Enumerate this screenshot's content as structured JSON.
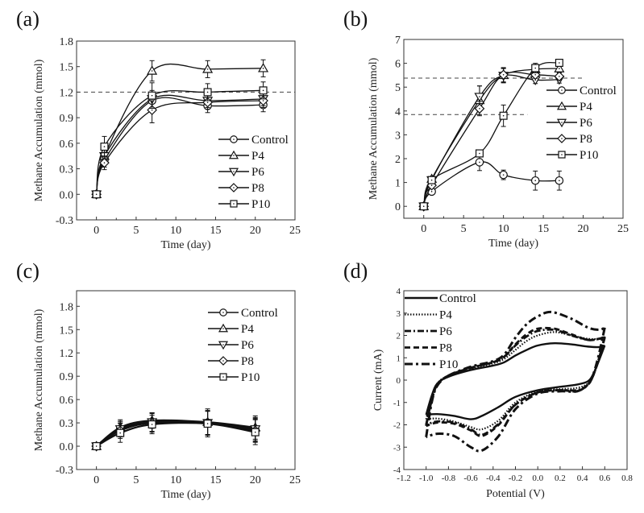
{
  "chart_data": [
    {
      "id": "a",
      "panel_label": "(a)",
      "type": "line",
      "xlabel": "Time (day)",
      "ylabel": "Methane Accumulation (mmol)",
      "xlim": [
        -2.5,
        25
      ],
      "ylim": [
        -0.3,
        1.8
      ],
      "xticks": [
        0,
        5,
        10,
        15,
        20,
        25
      ],
      "yticks": [
        -0.3,
        0.0,
        0.3,
        0.6,
        0.9,
        1.2,
        1.5,
        1.8
      ],
      "ytick_labels": [
        "-0.3",
        "0.0",
        "0.3",
        "0.6",
        "0.9",
        "1.2",
        "1.5",
        "1.8"
      ],
      "grid": false,
      "legend_position": "lower-right",
      "reference_lines": [
        {
          "axis": "y",
          "value": 1.2,
          "style": "dashed"
        }
      ],
      "x": [
        0,
        1,
        7,
        14,
        21
      ],
      "series": [
        {
          "name": "Control",
          "marker": "circle",
          "values": [
            0,
            0.4,
            1.1,
            1.04,
            1.05
          ],
          "errors": [
            0.03,
            0.08,
            0.1,
            0.08,
            0.08
          ]
        },
        {
          "name": "P4",
          "marker": "triangle-up",
          "values": [
            0,
            0.45,
            1.45,
            1.47,
            1.48
          ],
          "errors": [
            0.03,
            0.08,
            0.12,
            0.1,
            0.1
          ]
        },
        {
          "name": "P6",
          "marker": "triangle-down",
          "values": [
            0,
            0.45,
            1.12,
            1.1,
            1.12
          ],
          "errors": [
            0.03,
            0.08,
            0.1,
            0.08,
            0.08
          ]
        },
        {
          "name": "P8",
          "marker": "diamond",
          "values": [
            0,
            0.37,
            0.99,
            1.08,
            1.1
          ],
          "errors": [
            0.03,
            0.08,
            0.15,
            0.08,
            0.08
          ]
        },
        {
          "name": "P10",
          "marker": "square",
          "values": [
            0,
            0.56,
            1.16,
            1.2,
            1.22
          ],
          "errors": [
            0.03,
            0.12,
            0.15,
            0.1,
            0.1
          ]
        }
      ]
    },
    {
      "id": "b",
      "panel_label": "(b)",
      "type": "line",
      "xlabel": "Time (day)",
      "ylabel": "Methane Accumulation (mmol)",
      "xlim": [
        -2.5,
        25
      ],
      "ylim": [
        -0.5,
        7
      ],
      "xticks": [
        0,
        5,
        10,
        15,
        20,
        25
      ],
      "yticks": [
        0,
        1,
        2,
        3,
        4,
        5,
        6,
        7
      ],
      "ytick_labels": [
        "0",
        "1",
        "2",
        "3",
        "4",
        "5",
        "6",
        "7"
      ],
      "grid": false,
      "legend_position": "right",
      "reference_lines": [
        {
          "axis": "y",
          "value": 5.38,
          "style": "dashed",
          "x_extent": [
            -2.5,
            20
          ]
        },
        {
          "axis": "y",
          "value": 3.85,
          "style": "dashed",
          "x_extent": [
            -2.5,
            13
          ]
        }
      ],
      "x": [
        0,
        1,
        7,
        10,
        14,
        17
      ],
      "series": [
        {
          "name": "Control",
          "marker": "circle",
          "values": [
            0,
            0.62,
            1.85,
            1.32,
            1.08,
            1.08
          ],
          "errors": [
            0.05,
            0.1,
            0.35,
            0.2,
            0.4,
            0.4
          ]
        },
        {
          "name": "P4",
          "marker": "triangle-up",
          "values": [
            0,
            1.15,
            4.45,
            5.5,
            5.75,
            5.78
          ],
          "errors": [
            0.05,
            0.1,
            0.6,
            0.3,
            0.15,
            0.15
          ]
        },
        {
          "name": "P6",
          "marker": "triangle-down",
          "values": [
            0,
            1.1,
            4.6,
            5.48,
            5.3,
            5.32
          ],
          "errors": [
            0.05,
            0.1,
            0.45,
            0.3,
            0.15,
            0.15
          ]
        },
        {
          "name": "P8",
          "marker": "diamond",
          "values": [
            0,
            0.88,
            4.1,
            5.52,
            5.52,
            5.45
          ],
          "errors": [
            0.05,
            0.1,
            0.3,
            0.3,
            0.15,
            0.15
          ]
        },
        {
          "name": "P10",
          "marker": "square",
          "values": [
            0,
            1.1,
            2.22,
            3.8,
            5.8,
            6.02
          ],
          "errors": [
            0.05,
            0.1,
            0.15,
            0.45,
            0.2,
            0.15
          ]
        }
      ]
    },
    {
      "id": "c",
      "panel_label": "(c)",
      "type": "line",
      "xlabel": "Time (day)",
      "ylabel": "Methane Accumulation (mmol)",
      "xlim": [
        -2.5,
        25
      ],
      "ylim": [
        -0.3,
        2.0
      ],
      "xticks": [
        0,
        5,
        10,
        15,
        20,
        25
      ],
      "yticks": [
        -0.3,
        0.0,
        0.3,
        0.6,
        0.9,
        1.2,
        1.5,
        1.8
      ],
      "ytick_labels": [
        "-0.3",
        "0.0",
        "0.3",
        "0.6",
        "0.9",
        "1.2",
        "1.5",
        "1.8"
      ],
      "grid": false,
      "legend_position": "top-right",
      "reference_lines": [],
      "x": [
        0,
        3,
        7,
        14,
        20
      ],
      "series": [
        {
          "name": "Control",
          "marker": "circle",
          "values": [
            0,
            0.22,
            0.31,
            0.3,
            0.21
          ],
          "errors": [
            0.03,
            0.1,
            0.12,
            0.15,
            0.15
          ]
        },
        {
          "name": "P4",
          "marker": "triangle-up",
          "values": [
            0,
            0.24,
            0.33,
            0.31,
            0.24
          ],
          "errors": [
            0.03,
            0.1,
            0.1,
            0.17,
            0.15
          ]
        },
        {
          "name": "P6",
          "marker": "triangle-down",
          "values": [
            0,
            0.22,
            0.31,
            0.3,
            0.22
          ],
          "errors": [
            0.03,
            0.1,
            0.12,
            0.15,
            0.15
          ]
        },
        {
          "name": "P8",
          "marker": "diamond",
          "values": [
            0,
            0.2,
            0.3,
            0.3,
            0.2
          ],
          "errors": [
            0.03,
            0.1,
            0.12,
            0.15,
            0.15
          ]
        },
        {
          "name": "P10",
          "marker": "square",
          "values": [
            0,
            0.17,
            0.28,
            0.29,
            0.18
          ],
          "errors": [
            0.03,
            0.12,
            0.12,
            0.17,
            0.16
          ]
        }
      ]
    },
    {
      "id": "d",
      "panel_label": "(d)",
      "type": "line",
      "subtype": "cyclic-voltammetry",
      "xlabel": "Potential (V)",
      "ylabel": "Current (mA)",
      "xlim": [
        -1.2,
        0.8
      ],
      "ylim": [
        -4,
        4
      ],
      "xticks": [
        -1.2,
        -1.0,
        -0.8,
        -0.6,
        -0.4,
        -0.2,
        0.0,
        0.2,
        0.4,
        0.6,
        0.8
      ],
      "xtick_labels": [
        "-1.2",
        "-1.0",
        "-0.8",
        "-0.6",
        "-0.4",
        "-0.2",
        "0.0",
        "0.2",
        "0.4",
        "0.6",
        "0.8"
      ],
      "yticks": [
        -4,
        -3,
        -2,
        -1,
        0,
        1,
        2,
        3,
        4
      ],
      "ytick_labels": [
        "-4",
        "-3",
        "-2",
        "-1",
        "0",
        "1",
        "2",
        "3",
        "4"
      ],
      "grid": false,
      "legend_position": "top-left",
      "series": [
        {
          "name": "Control",
          "line_style": "solid",
          "forward": [
            [
              -1.0,
              -1.55
            ],
            [
              -0.95,
              -0.7
            ],
            [
              -0.9,
              -0.15
            ],
            [
              -0.8,
              0.15
            ],
            [
              -0.6,
              0.45
            ],
            [
              -0.4,
              0.65
            ],
            [
              -0.3,
              0.8
            ],
            [
              -0.2,
              1.1
            ],
            [
              -0.1,
              1.35
            ],
            [
              0.0,
              1.55
            ],
            [
              0.15,
              1.65
            ],
            [
              0.3,
              1.6
            ],
            [
              0.45,
              1.5
            ],
            [
              0.55,
              1.48
            ],
            [
              0.6,
              1.55
            ]
          ],
          "reverse": [
            [
              0.6,
              1.55
            ],
            [
              0.55,
              0.9
            ],
            [
              0.5,
              0.3
            ],
            [
              0.45,
              -0.05
            ],
            [
              0.35,
              -0.2
            ],
            [
              0.2,
              -0.3
            ],
            [
              0.0,
              -0.45
            ],
            [
              -0.2,
              -0.75
            ],
            [
              -0.35,
              -1.2
            ],
            [
              -0.5,
              -1.6
            ],
            [
              -0.6,
              -1.75
            ],
            [
              -0.75,
              -1.6
            ],
            [
              -0.9,
              -1.52
            ],
            [
              -1.0,
              -1.55
            ]
          ]
        },
        {
          "name": "P4",
          "line_style": "dotted",
          "forward": [
            [
              -1.0,
              -1.75
            ],
            [
              -0.95,
              -0.8
            ],
            [
              -0.9,
              -0.15
            ],
            [
              -0.8,
              0.2
            ],
            [
              -0.6,
              0.5
            ],
            [
              -0.4,
              0.75
            ],
            [
              -0.3,
              0.95
            ],
            [
              -0.2,
              1.35
            ],
            [
              -0.1,
              1.75
            ],
            [
              0.0,
              2.0
            ],
            [
              0.15,
              2.15
            ],
            [
              0.3,
              2.0
            ],
            [
              0.45,
              1.85
            ],
            [
              0.55,
              1.85
            ],
            [
              0.6,
              1.95
            ]
          ],
          "reverse": [
            [
              0.6,
              1.95
            ],
            [
              0.55,
              1.0
            ],
            [
              0.5,
              0.3
            ],
            [
              0.45,
              -0.15
            ],
            [
              0.35,
              -0.35
            ],
            [
              0.2,
              -0.4
            ],
            [
              0.0,
              -0.5
            ],
            [
              -0.2,
              -1.0
            ],
            [
              -0.35,
              -1.8
            ],
            [
              -0.5,
              -2.2
            ],
            [
              -0.6,
              -2.1
            ],
            [
              -0.75,
              -1.85
            ],
            [
              -0.9,
              -1.72
            ],
            [
              -1.0,
              -1.75
            ]
          ]
        },
        {
          "name": "P6",
          "line_style": "dash-dot",
          "forward": [
            [
              -1.0,
              -2.0
            ],
            [
              -0.95,
              -0.9
            ],
            [
              -0.9,
              -0.2
            ],
            [
              -0.8,
              0.2
            ],
            [
              -0.6,
              0.55
            ],
            [
              -0.4,
              0.8
            ],
            [
              -0.3,
              1.05
            ],
            [
              -0.2,
              1.55
            ],
            [
              -0.1,
              1.95
            ],
            [
              0.0,
              2.2
            ],
            [
              0.15,
              2.25
            ],
            [
              0.3,
              2.0
            ],
            [
              0.45,
              1.8
            ],
            [
              0.55,
              1.85
            ],
            [
              0.6,
              1.95
            ]
          ],
          "reverse": [
            [
              0.6,
              1.95
            ],
            [
              0.55,
              1.0
            ],
            [
              0.5,
              0.25
            ],
            [
              0.45,
              -0.2
            ],
            [
              0.35,
              -0.45
            ],
            [
              0.2,
              -0.45
            ],
            [
              0.0,
              -0.55
            ],
            [
              -0.2,
              -1.1
            ],
            [
              -0.35,
              -1.95
            ],
            [
              -0.5,
              -2.45
            ],
            [
              -0.6,
              -2.2
            ],
            [
              -0.75,
              -1.9
            ],
            [
              -0.9,
              -1.85
            ],
            [
              -1.0,
              -2.0
            ]
          ]
        },
        {
          "name": "P8",
          "line_style": "dashed",
          "forward": [
            [
              -1.0,
              -2.05
            ],
            [
              -0.95,
              -0.9
            ],
            [
              -0.9,
              -0.2
            ],
            [
              -0.8,
              0.2
            ],
            [
              -0.6,
              0.55
            ],
            [
              -0.4,
              0.8
            ],
            [
              -0.3,
              1.05
            ],
            [
              -0.2,
              1.6
            ],
            [
              -0.1,
              2.05
            ],
            [
              0.0,
              2.3
            ],
            [
              0.15,
              2.3
            ],
            [
              0.3,
              2.05
            ],
            [
              0.45,
              1.8
            ],
            [
              0.55,
              1.85
            ],
            [
              0.6,
              1.9
            ]
          ],
          "reverse": [
            [
              0.6,
              1.9
            ],
            [
              0.55,
              1.0
            ],
            [
              0.5,
              0.25
            ],
            [
              0.45,
              -0.2
            ],
            [
              0.35,
              -0.5
            ],
            [
              0.2,
              -0.45
            ],
            [
              0.0,
              -0.55
            ],
            [
              -0.2,
              -1.1
            ],
            [
              -0.35,
              -2.0
            ],
            [
              -0.5,
              -2.5
            ],
            [
              -0.6,
              -2.25
            ],
            [
              -0.75,
              -1.95
            ],
            [
              -0.9,
              -1.9
            ],
            [
              -1.0,
              -2.05
            ]
          ]
        },
        {
          "name": "P10",
          "line_style": "long-dash-dot",
          "forward": [
            [
              -1.0,
              -2.55
            ],
            [
              -0.95,
              -1.0
            ],
            [
              -0.9,
              -0.25
            ],
            [
              -0.8,
              0.2
            ],
            [
              -0.6,
              0.6
            ],
            [
              -0.4,
              0.85
            ],
            [
              -0.3,
              1.15
            ],
            [
              -0.2,
              1.9
            ],
            [
              -0.1,
              2.5
            ],
            [
              0.0,
              2.85
            ],
            [
              0.12,
              3.05
            ],
            [
              0.3,
              2.75
            ],
            [
              0.45,
              2.35
            ],
            [
              0.55,
              2.25
            ],
            [
              0.6,
              2.35
            ]
          ],
          "reverse": [
            [
              0.6,
              2.35
            ],
            [
              0.55,
              1.2
            ],
            [
              0.5,
              0.3
            ],
            [
              0.45,
              -0.2
            ],
            [
              0.35,
              -0.5
            ],
            [
              0.2,
              -0.5
            ],
            [
              0.0,
              -0.6
            ],
            [
              -0.2,
              -1.3
            ],
            [
              -0.35,
              -2.5
            ],
            [
              -0.5,
              -3.15
            ],
            [
              -0.6,
              -3.0
            ],
            [
              -0.75,
              -2.5
            ],
            [
              -0.9,
              -2.4
            ],
            [
              -1.0,
              -2.55
            ]
          ]
        }
      ]
    }
  ]
}
